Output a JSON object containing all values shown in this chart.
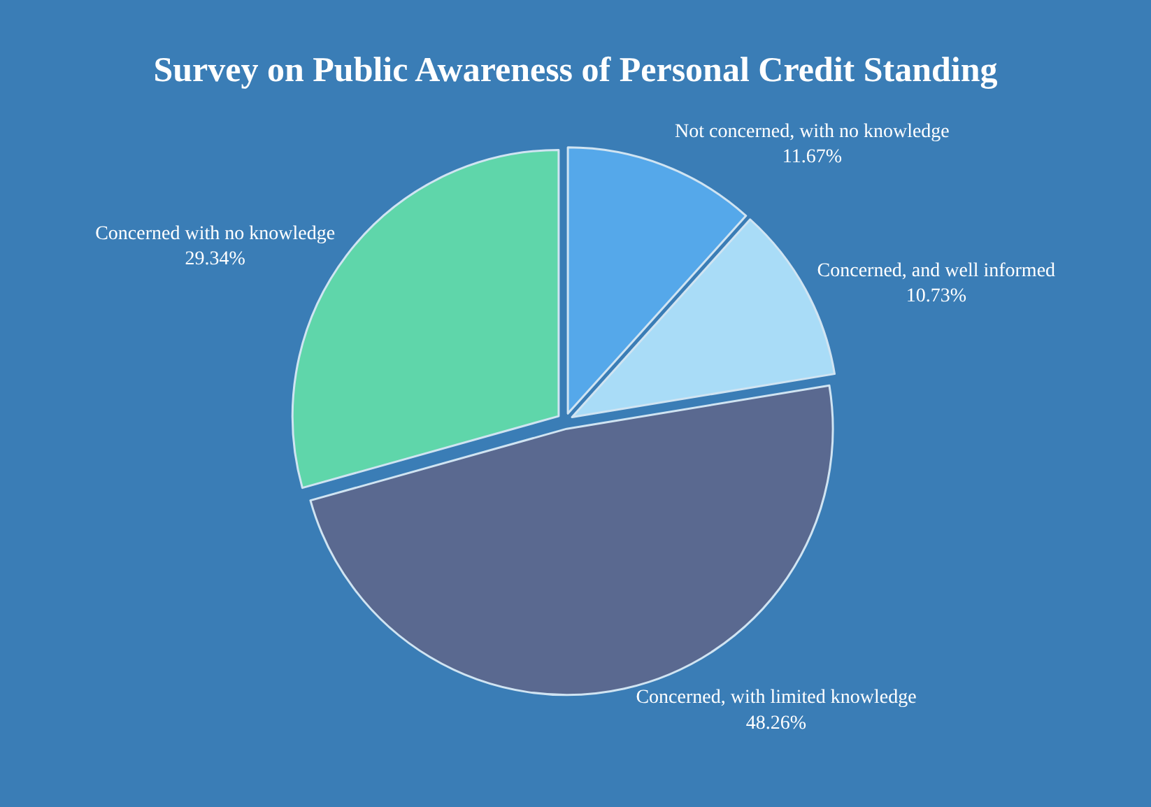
{
  "chart_data": {
    "type": "pie",
    "title": "Survey on Public Awareness of Personal Credit Standing",
    "categories": [
      "Not concerned, with no knowledge",
      "Concerned, and well informed",
      "Concerned, with limited knowledge",
      "Concerned with no knowledge"
    ],
    "values": [
      11.67,
      10.73,
      48.26,
      29.34
    ],
    "value_labels": [
      "11.67%",
      "10.73%",
      "48.26%",
      "29.34%"
    ],
    "colors": [
      "#55a8ea",
      "#a9dcf7",
      "#5a6990",
      "#5fd6aa"
    ],
    "legend": false
  }
}
